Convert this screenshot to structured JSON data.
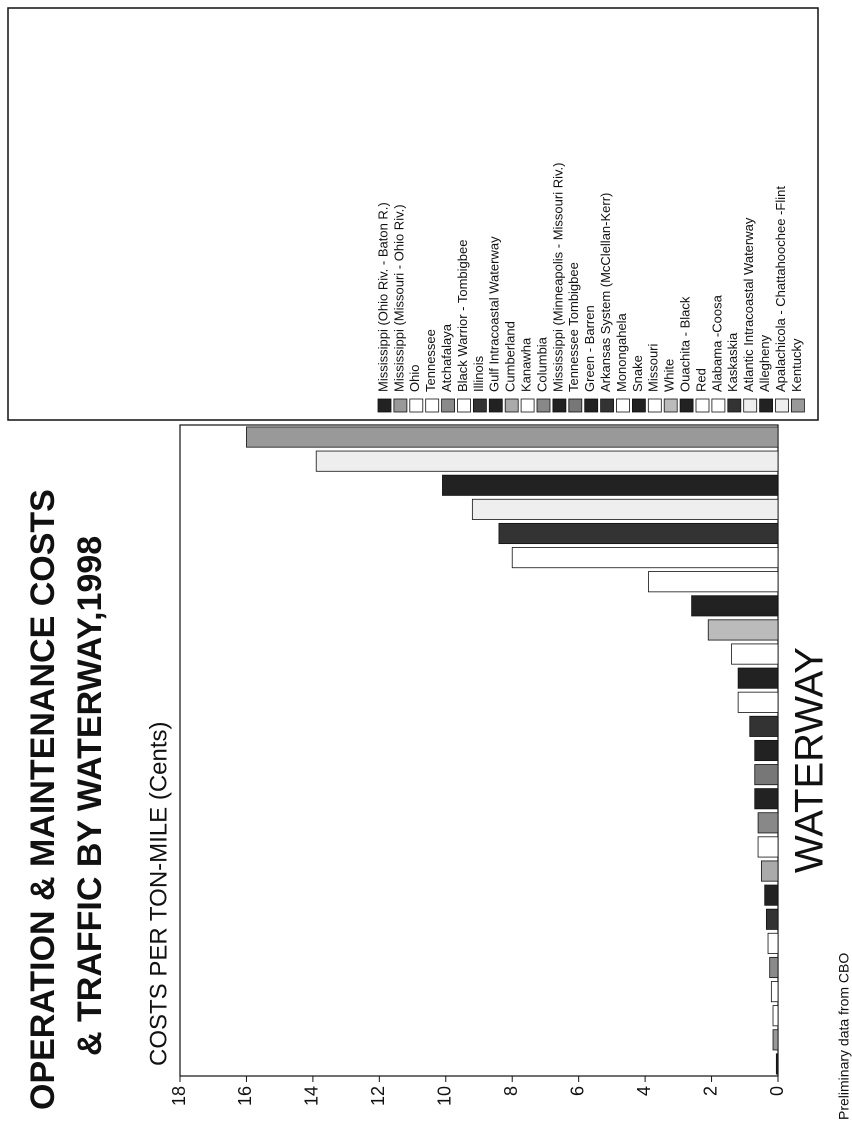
{
  "chart_data": {
    "type": "bar",
    "title_lines": [
      "OPERATION & MAINTENANCE COSTS",
      "& TRAFFIC BY WATERWAY,1998"
    ],
    "y_label": "COSTS PER TON-MILE (Cents)",
    "x_label": "WATERWAY",
    "note": "Preliminary data from CBO",
    "categories": [
      "Mississippi (Ohio Riv. - Baton R.)",
      "Mississippi (Missouri - Ohio Riv.)",
      "Ohio",
      "Tennessee",
      "Atchafalaya",
      "Black Warrior - Tombigbee",
      "Illinois",
      "Gulf Intracoastal Waterway",
      "Cumberland",
      "Kanawha",
      "Columbia",
      "Mississippi (Minneapolis - Missouri Riv.)",
      "Tennessee Tombigbee",
      "Green - Barren",
      "Arkansas System (McClellan-Kerr)",
      "Monongahela",
      "Snake",
      "Missouri",
      "White",
      "Ouachita - Black",
      "Red",
      "Alabama -Coosa",
      "Kaskaskia",
      "Atlantic Intracoastal Waterway",
      "Allegheny",
      "Apalachicola - Chattahoochee -Flint",
      "Kentucky"
    ],
    "values": [
      0.05,
      0.15,
      0.15,
      0.2,
      0.25,
      0.3,
      0.35,
      0.4,
      0.5,
      0.6,
      0.6,
      0.7,
      0.7,
      0.7,
      0.85,
      1.2,
      1.2,
      1.4,
      2.1,
      2.6,
      3.9,
      8.0,
      8.4,
      9.2,
      10.1,
      13.9,
      16.0
    ],
    "colors": [
      "#222222",
      "#999999",
      "#ffffff",
      "#ffffff",
      "#8a8a8a",
      "#ffffff",
      "#333333",
      "#222222",
      "#aaaaaa",
      "#ffffff",
      "#888888",
      "#222222",
      "#777777",
      "#222222",
      "#333333",
      "#ffffff",
      "#222222",
      "#ffffff",
      "#bbbbbb",
      "#222222",
      "#ffffff",
      "#ffffff",
      "#333333",
      "#eeeeee",
      "#222222",
      "#eeeeee",
      "#999999"
    ],
    "ylim": [
      0,
      18
    ],
    "yticks": [
      0,
      2,
      4,
      6,
      8,
      10,
      12,
      14,
      16,
      18
    ]
  }
}
